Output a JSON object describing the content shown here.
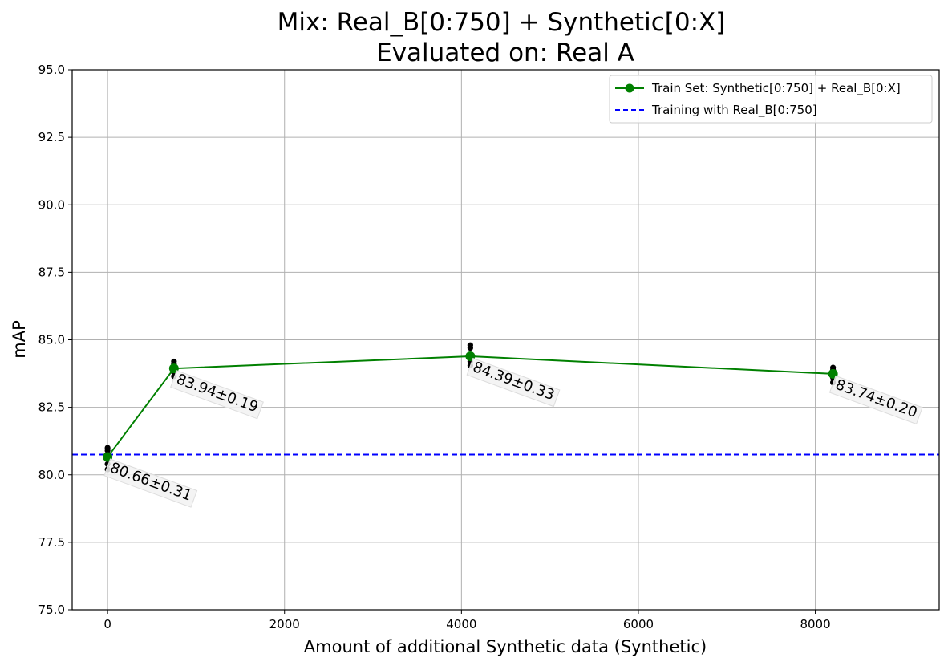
{
  "chart_data": {
    "type": "line",
    "title_line1": "Mix: Real_B[0:750] + Synthetic[0:X]",
    "title_line2": "Evaluated on: Real A",
    "xlabel": "Amount of additional Synthetic data (Synthetic)",
    "ylabel": "mAP",
    "xlim": [
      -400,
      9400
    ],
    "ylim": [
      75.0,
      95.0
    ],
    "xticks": [
      0,
      2000,
      4000,
      6000,
      8000
    ],
    "xtick_labels": [
      "0",
      "2000",
      "4000",
      "6000",
      "8000"
    ],
    "yticks": [
      75.0,
      77.5,
      80.0,
      82.5,
      85.0,
      87.5,
      90.0,
      92.5,
      95.0
    ],
    "ytick_labels": [
      "75.0",
      "77.5",
      "80.0",
      "82.5",
      "85.0",
      "87.5",
      "90.0",
      "92.5",
      "95.0"
    ],
    "grid": true,
    "legend_position": "top-right",
    "series": [
      {
        "name": "Train Set: Synthetic[0:750] + Real_B[0:X]",
        "color": "#008000",
        "style": "solid-with-markers",
        "x": [
          0,
          750,
          4100,
          8200
        ],
        "y": [
          80.66,
          83.94,
          84.39,
          83.74
        ]
      }
    ],
    "reference_line": {
      "name": "Training with Real_B[0:750]",
      "color": "#0000ff",
      "style": "dashed",
      "y": 80.75
    },
    "individual_runs": [
      {
        "x": 0,
        "y": [
          81.0,
          80.9,
          80.7,
          80.4,
          80.2
        ]
      },
      {
        "x": 750,
        "y": [
          84.2,
          84.1,
          83.95,
          83.8,
          83.65
        ]
      },
      {
        "x": 4100,
        "y": [
          84.8,
          84.7,
          84.4,
          84.2,
          84.05
        ]
      },
      {
        "x": 8200,
        "y": [
          83.97,
          83.9,
          83.75,
          83.6,
          83.42
        ]
      }
    ],
    "annotations": [
      "80.66±0.31",
      "83.94±0.19",
      "84.39±0.33",
      "83.74±0.20"
    ]
  }
}
